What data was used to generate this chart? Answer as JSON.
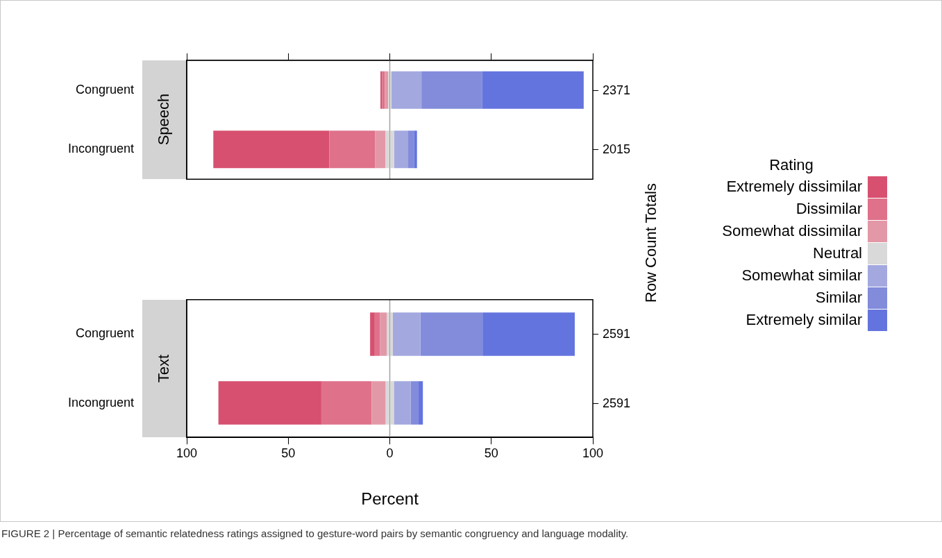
{
  "chart_data": [
    {
      "type": "bar",
      "orientation": "horizontal",
      "stacked": true,
      "title": "Speech",
      "categories": [
        "Congruent",
        "Incongruent"
      ],
      "series": [
        {
          "name": "Neutral",
          "color": "#d9d9d9",
          "values": [
            -0.8,
            -2.2
          ]
        },
        {
          "name": "Somewhat dissimilar",
          "color": "#e398a8",
          "values": [
            -1.6,
            -5.1
          ]
        },
        {
          "name": "Dissimilar",
          "color": "#df718b",
          "values": [
            -1.4,
            -22.5
          ]
        },
        {
          "name": "Extremely dissimilar",
          "color": "#d75070",
          "values": [
            -0.8,
            -57.1
          ]
        },
        {
          "color": "#d9d9d9",
          "values": [
            0.8,
            2.2
          ]
        },
        {
          "name": "Somewhat similar",
          "color": "#a3a9df",
          "values": [
            14.8,
            6.6
          ]
        },
        {
          "name": "Similar",
          "color": "#828cdb",
          "values": [
            30.0,
            3.1
          ]
        },
        {
          "name": "Extremely similar",
          "color": "#6474de",
          "values": [
            49.9,
            1.5
          ]
        }
      ],
      "xlim": [
        -100,
        100
      ],
      "xticks": [
        {
          "value": -100,
          "label": null
        },
        {
          "value": -50,
          "label": null
        },
        {
          "value": 0,
          "label": null
        },
        {
          "value": 50,
          "label": null
        },
        {
          "value": 100,
          "label": null
        }
      ],
      "tick_labels": "y",
      "y2label": "Row Count Totals",
      "legend": "right",
      "legend_title": "Rating",
      "ref_lines": [
        {
          "axis": "x",
          "value": 0,
          "color": "#a0a0a0"
        }
      ],
      "annotations": [
        "2371",
        "2015"
      ]
    },
    {
      "type": "bar",
      "orientation": "horizontal",
      "stacked": true,
      "title": "Text",
      "categories": [
        "Congruent",
        "Incongruent"
      ],
      "series": [
        {
          "color": "#d9d9d9",
          "values": [
            -1.5,
            -2.0
          ]
        },
        {
          "color": "#e398a8",
          "values": [
            -3.4,
            -6.9
          ]
        },
        {
          "color": "#df718b",
          "values": [
            -2.5,
            -24.8
          ]
        },
        {
          "color": "#d75070",
          "values": [
            -2.3,
            -50.7
          ]
        },
        {
          "color": "#d9d9d9",
          "values": [
            1.5,
            2.0
          ]
        },
        {
          "color": "#a3a9df",
          "values": [
            13.6,
            8.3
          ]
        },
        {
          "color": "#828cdb",
          "values": [
            30.6,
            3.9
          ]
        },
        {
          "color": "#6474de",
          "values": [
            45.4,
            2.1
          ]
        }
      ],
      "xlim": [
        -100,
        100
      ],
      "xticks": [
        {
          "value": -100,
          "label": "100"
        },
        {
          "value": -50,
          "label": "50"
        },
        {
          "value": 0,
          "label": "0"
        },
        {
          "value": 50,
          "label": "50"
        },
        {
          "value": 100,
          "label": "100"
        }
      ],
      "xlabel": "Percent",
      "ref_lines": [
        {
          "axis": "x",
          "value": 0,
          "color": "#a0a0a0"
        }
      ],
      "annotations": [
        "2591",
        "2591",
        "FIGURE 2 | Percentage of semantic relatedness ratings assigned to gesture-word pairs by semantic congruency and language modality."
      ]
    }
  ]
}
